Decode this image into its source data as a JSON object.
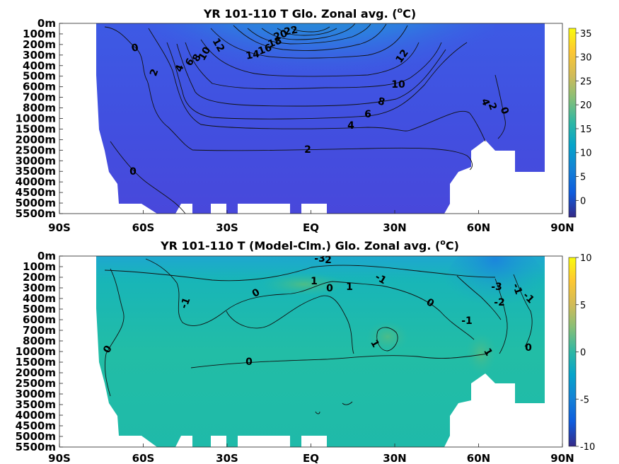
{
  "chart_data": [
    {
      "type": "heatmap",
      "title_main": "YR 101-110 T Glo. Zonal avg. (",
      "title_sup": "o",
      "title_end": "C)",
      "x_ticks": [
        "90S",
        "60S",
        "30S",
        "EQ",
        "30N",
        "60N",
        "90N"
      ],
      "x_lat": [
        -90,
        -60,
        -30,
        0,
        30,
        60,
        90
      ],
      "y_ticks": [
        "0m",
        "100m",
        "200m",
        "300m",
        "400m",
        "500m",
        "600m",
        "700m",
        "800m",
        "1000m",
        "1500m",
        "2000m",
        "2500m",
        "3000m",
        "3500m",
        "4000m",
        "4500m",
        "5000m",
        "5500m"
      ],
      "colorbar_ticks": [
        "35",
        "30",
        "25",
        "20",
        "15",
        "10",
        "5",
        "0"
      ],
      "colorbar_values": [
        35,
        30,
        25,
        20,
        15,
        10,
        5,
        0
      ],
      "clim": [
        -3.5,
        36
      ],
      "colormap": "parula",
      "land_color": "#ffffff",
      "contour_labels": [
        "0",
        "2",
        "4",
        "6",
        "8",
        "10",
        "12",
        "2",
        "4",
        "6",
        "8",
        "10",
        "12",
        "14",
        "16",
        "18",
        "20",
        "22",
        "4",
        "2",
        "0",
        "0"
      ]
    },
    {
      "type": "heatmap",
      "title_main": "YR 101-110 T (Model-Clm.) Glo. Zonal avg. (",
      "title_sup": "o",
      "title_end": "C)",
      "x_ticks": [
        "90S",
        "60S",
        "30S",
        "EQ",
        "30N",
        "60N",
        "90N"
      ],
      "x_lat": [
        -90,
        -60,
        -30,
        0,
        30,
        60,
        90
      ],
      "y_ticks": [
        "0m",
        "100m",
        "200m",
        "300m",
        "400m",
        "500m",
        "600m",
        "700m",
        "800m",
        "1000m",
        "1500m",
        "2000m",
        "2500m",
        "3000m",
        "3500m",
        "4000m",
        "4500m",
        "5000m",
        "5500m"
      ],
      "colorbar_ticks": [
        "10",
        "5",
        "0",
        "-5",
        "-10"
      ],
      "colorbar_values": [
        10,
        5,
        0,
        -5,
        -10
      ],
      "clim": [
        -10,
        10
      ],
      "colormap": "parula",
      "land_color": "#ffffff",
      "contour_labels": [
        "-3",
        "2",
        "-1",
        "0",
        "1",
        "0",
        "1",
        "-1",
        "0",
        "-3",
        "-2",
        "-1",
        "-1",
        "0",
        "-1",
        "0",
        "1",
        "1",
        "0",
        "0"
      ]
    }
  ]
}
